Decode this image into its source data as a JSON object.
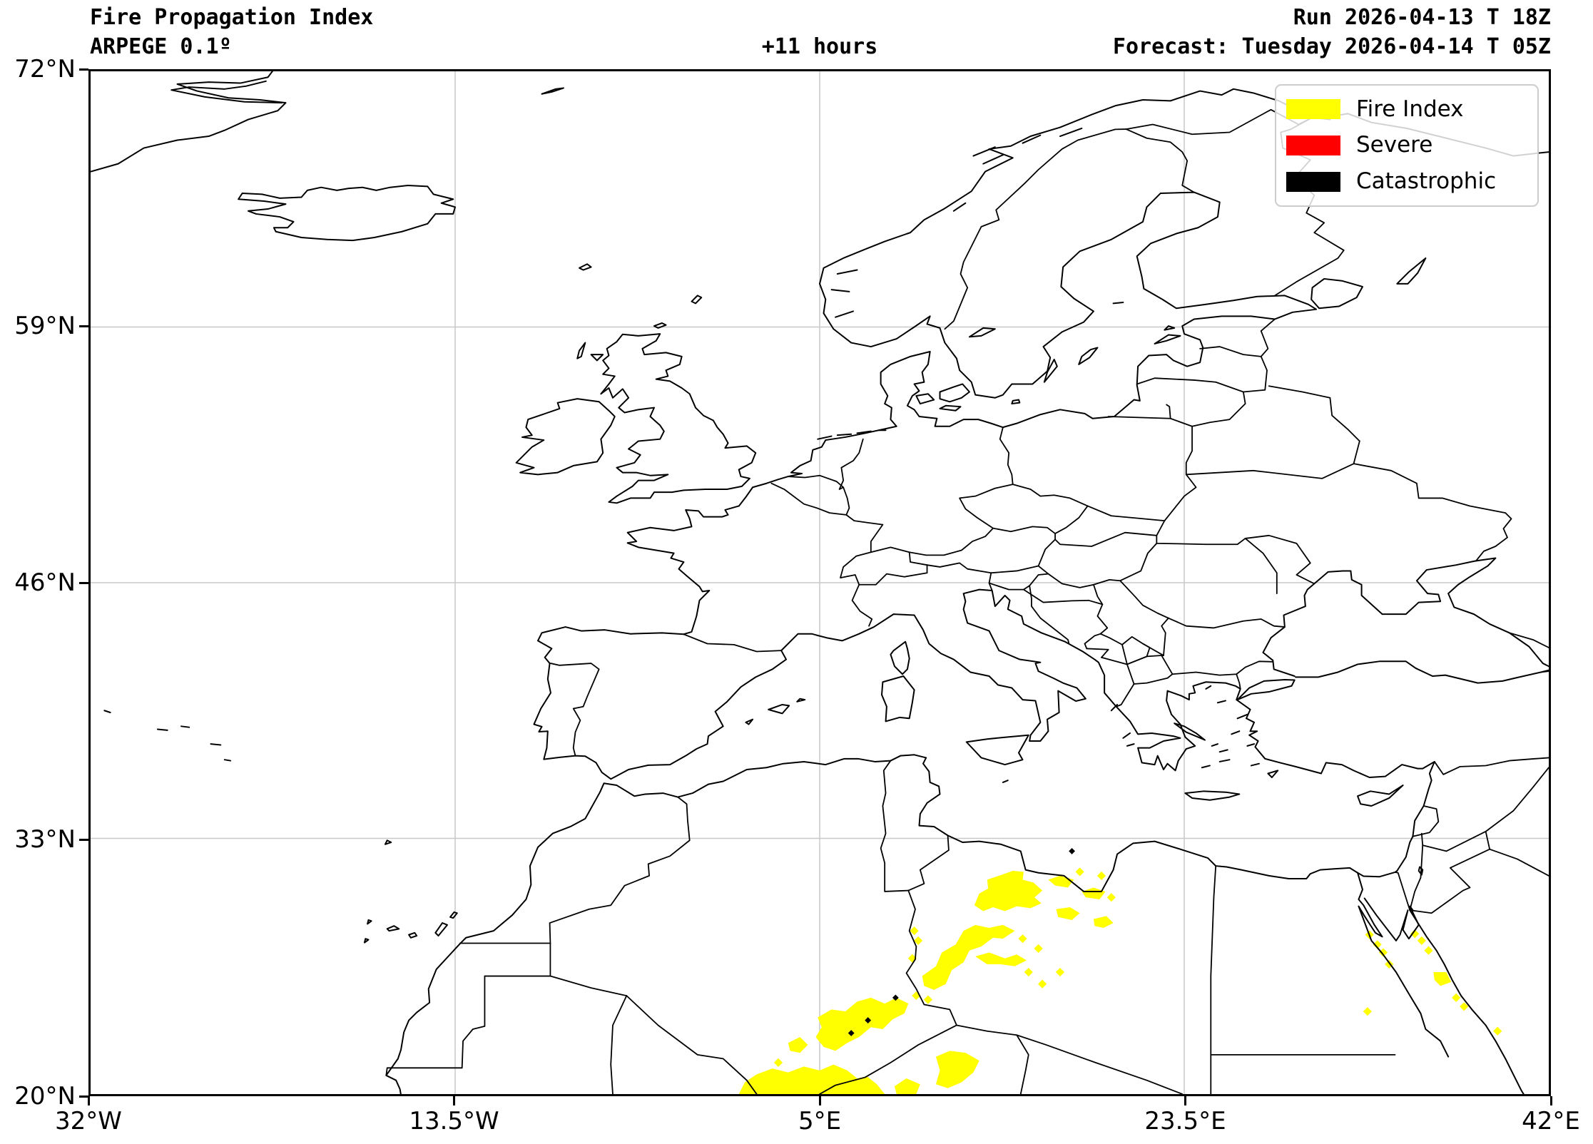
{
  "header": {
    "title": "Fire Propagation Index",
    "model": "ARPEGE 0.1º",
    "lead_time": "+11 hours",
    "run": "Run 2026-04-13 T 18Z",
    "forecast": "Forecast: Tuesday 2026-04-14 T 05Z"
  },
  "axes": {
    "y_tick_labels": [
      "72°N",
      "59°N",
      "46°N",
      "33°N",
      "20°N"
    ],
    "y_tick_lats": [
      72,
      59,
      46,
      33,
      20
    ],
    "x_tick_labels": [
      "32°W",
      "13.5°W",
      "5°E",
      "23.5°E",
      "42°E"
    ],
    "x_tick_lons": [
      -32,
      -13.5,
      5,
      23.5,
      42
    ],
    "lon_min": -32,
    "lon_max": 42,
    "lat_min": 20,
    "lat_max": 72,
    "grid_color": "#c8c8c8",
    "frame_color": "#000000"
  },
  "legend": {
    "items": [
      {
        "label": "Fire Index",
        "color": "#ffff00"
      },
      {
        "label": "Severe",
        "color": "#ff0000"
      },
      {
        "label": "Catastrophic",
        "color": "#000000"
      }
    ]
  },
  "map": {
    "coast_color": "#000000",
    "background": "#ffffff"
  },
  "chart_data": {
    "type": "heatmap",
    "title": "Fire Propagation Index",
    "categories": [
      "Fire Index",
      "Severe",
      "Catastrophic"
    ],
    "category_colors": [
      "#ffff00",
      "#ff0000",
      "#000000"
    ],
    "lon_range": [
      -32,
      42
    ],
    "lat_range": [
      20,
      72
    ],
    "fire_index_polygons_lonlat": [
      [
        [
          12.85,
          29.6
        ],
        [
          13.1,
          30.2
        ],
        [
          13.55,
          30.45
        ],
        [
          13.5,
          30.9
        ],
        [
          14.1,
          31.1
        ],
        [
          14.8,
          31.35
        ],
        [
          15.35,
          31.3
        ],
        [
          15.3,
          30.9
        ],
        [
          15.85,
          30.75
        ],
        [
          16.3,
          30.35
        ],
        [
          15.9,
          30.0
        ],
        [
          16.25,
          29.7
        ],
        [
          15.7,
          29.45
        ],
        [
          15.0,
          29.55
        ],
        [
          14.4,
          29.3
        ],
        [
          13.8,
          29.5
        ],
        [
          13.3,
          29.3
        ]
      ],
      [
        [
          16.6,
          30.9
        ],
        [
          17.2,
          31.1
        ],
        [
          17.9,
          30.9
        ],
        [
          17.6,
          30.5
        ],
        [
          16.95,
          30.6
        ]
      ],
      [
        [
          18.3,
          30.3
        ],
        [
          18.9,
          30.5
        ],
        [
          19.5,
          30.3
        ],
        [
          19.2,
          29.9
        ],
        [
          18.5,
          30.0
        ]
      ],
      [
        [
          17.0,
          29.4
        ],
        [
          17.7,
          29.5
        ],
        [
          18.2,
          29.2
        ],
        [
          17.8,
          28.85
        ],
        [
          17.1,
          29.0
        ]
      ],
      [
        [
          18.9,
          28.9
        ],
        [
          19.55,
          29.05
        ],
        [
          19.9,
          28.7
        ],
        [
          19.4,
          28.45
        ],
        [
          18.95,
          28.55
        ]
      ],
      [
        [
          10.2,
          26.0
        ],
        [
          10.9,
          26.5
        ],
        [
          11.2,
          27.2
        ],
        [
          11.9,
          27.6
        ],
        [
          12.3,
          28.3
        ],
        [
          12.9,
          28.6
        ],
        [
          13.6,
          28.45
        ],
        [
          14.3,
          28.6
        ],
        [
          14.9,
          28.3
        ],
        [
          14.3,
          27.9
        ],
        [
          13.8,
          27.95
        ],
        [
          13.2,
          27.5
        ],
        [
          12.6,
          27.3
        ],
        [
          12.3,
          26.7
        ],
        [
          11.7,
          26.3
        ],
        [
          11.4,
          25.6
        ],
        [
          10.8,
          25.3
        ],
        [
          10.3,
          25.5
        ]
      ],
      [
        [
          12.9,
          27.0
        ],
        [
          13.6,
          27.2
        ],
        [
          14.4,
          26.9
        ],
        [
          15.0,
          27.1
        ],
        [
          15.5,
          26.8
        ],
        [
          14.9,
          26.5
        ],
        [
          14.2,
          26.6
        ],
        [
          13.5,
          26.6
        ]
      ],
      [
        [
          4.9,
          23.9
        ],
        [
          5.6,
          24.3
        ],
        [
          6.3,
          24.2
        ],
        [
          6.9,
          24.7
        ],
        [
          7.6,
          24.9
        ],
        [
          8.3,
          24.6
        ],
        [
          8.9,
          24.9
        ],
        [
          9.5,
          24.6
        ],
        [
          9.3,
          24.1
        ],
        [
          8.7,
          23.8
        ],
        [
          8.2,
          23.3
        ],
        [
          7.6,
          23.4
        ],
        [
          7.0,
          22.9
        ],
        [
          6.4,
          22.6
        ],
        [
          5.8,
          22.2
        ],
        [
          5.2,
          22.4
        ],
        [
          4.8,
          22.9
        ],
        [
          5.1,
          23.4
        ]
      ],
      [
        [
          3.4,
          22.6
        ],
        [
          4.0,
          22.9
        ],
        [
          4.4,
          22.5
        ],
        [
          4.0,
          22.1
        ],
        [
          3.5,
          22.2
        ]
      ],
      [
        [
          0.9,
          20.0
        ],
        [
          1.2,
          20.6
        ],
        [
          1.8,
          21.0
        ],
        [
          2.6,
          21.3
        ],
        [
          3.4,
          21.1
        ],
        [
          4.2,
          21.4
        ],
        [
          5.0,
          21.2
        ],
        [
          5.7,
          21.5
        ],
        [
          6.4,
          21.2
        ],
        [
          6.9,
          20.8
        ],
        [
          7.4,
          20.9
        ],
        [
          7.9,
          20.5
        ],
        [
          8.3,
          20.0
        ]
      ],
      [
        [
          8.8,
          20.4
        ],
        [
          9.4,
          20.8
        ],
        [
          10.1,
          20.5
        ],
        [
          9.9,
          20.0
        ],
        [
          8.9,
          20.0
        ]
      ],
      [
        [
          10.9,
          21.9
        ],
        [
          11.6,
          22.2
        ],
        [
          12.4,
          22.1
        ],
        [
          13.1,
          21.7
        ],
        [
          12.8,
          21.1
        ],
        [
          12.2,
          20.6
        ],
        [
          11.5,
          20.3
        ],
        [
          10.9,
          20.5
        ],
        [
          11.1,
          21.2
        ]
      ],
      [
        [
          36.15,
          26.2
        ],
        [
          36.8,
          26.2
        ],
        [
          37.05,
          25.7
        ],
        [
          36.5,
          25.5
        ],
        [
          36.2,
          25.8
        ]
      ]
    ],
    "fire_index_points_lonlat": [
      [
        9.8,
        28.3
      ],
      [
        10.0,
        27.8
      ],
      [
        9.7,
        26.9
      ],
      [
        15.3,
        27.9
      ],
      [
        16.1,
        27.4
      ],
      [
        15.6,
        26.2
      ],
      [
        16.3,
        25.6
      ],
      [
        17.2,
        26.2
      ],
      [
        18.2,
        31.3
      ],
      [
        19.3,
        31.1
      ],
      [
        19.8,
        30.0
      ],
      [
        9.9,
        25.0
      ],
      [
        10.5,
        24.8
      ],
      [
        2.9,
        21.6
      ],
      [
        32.9,
        28.1
      ],
      [
        33.3,
        27.6
      ],
      [
        33.6,
        27.2
      ],
      [
        33.9,
        26.6
      ],
      [
        32.8,
        24.2
      ],
      [
        35.2,
        28.15
      ],
      [
        35.55,
        27.8
      ],
      [
        35.9,
        27.3
      ],
      [
        37.3,
        24.9
      ],
      [
        37.7,
        24.45
      ],
      [
        39.4,
        23.2
      ]
    ],
    "severe_polygons_lonlat": [],
    "catastrophic_points_lonlat": [
      [
        7.45,
        23.75
      ],
      [
        6.6,
        23.1
      ],
      [
        8.85,
        24.9
      ],
      [
        17.8,
        32.35
      ]
    ]
  }
}
